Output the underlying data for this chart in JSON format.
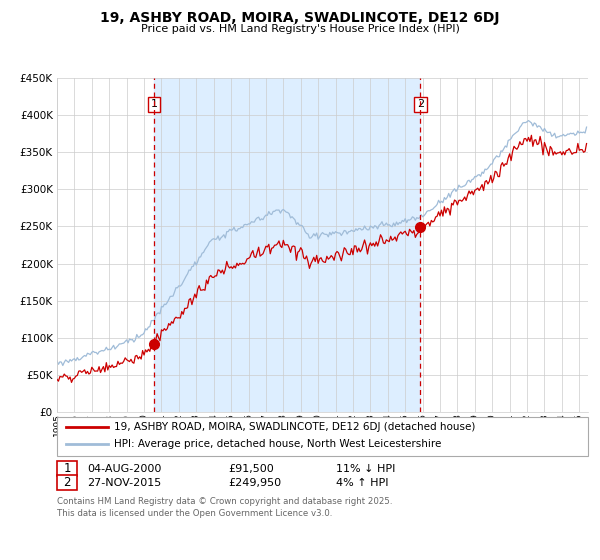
{
  "title": "19, ASHBY ROAD, MOIRA, SWADLINCOTE, DE12 6DJ",
  "subtitle": "Price paid vs. HM Land Registry's House Price Index (HPI)",
  "legend_line1": "19, ASHBY ROAD, MOIRA, SWADLINCOTE, DE12 6DJ (detached house)",
  "legend_line2": "HPI: Average price, detached house, North West Leicestershire",
  "transaction1_date": "04-AUG-2000",
  "transaction1_price": 91500,
  "transaction1_year": 2000.583,
  "transaction2_date": "27-NOV-2015",
  "transaction2_price": 249950,
  "transaction2_year": 2015.875,
  "table_row1": [
    "1",
    "04-AUG-2000",
    "£91,500",
    "11% ↓ HPI"
  ],
  "table_row2": [
    "2",
    "27-NOV-2015",
    "£249,950",
    "4% ↑ HPI"
  ],
  "footer": "Contains HM Land Registry data © Crown copyright and database right 2025.\nThis data is licensed under the Open Government Licence v3.0.",
  "hpi_color": "#a0bcd8",
  "price_color": "#cc0000",
  "shade_color": "#ddeeff",
  "plot_bg": "#ffffff",
  "grid_color": "#cccccc",
  "start_year": 1995.0,
  "end_year": 2025.5,
  "ylim_min": 0,
  "ylim_max": 450000,
  "yticks": [
    0,
    50000,
    100000,
    150000,
    200000,
    250000,
    300000,
    350000,
    400000,
    450000
  ],
  "marker_size": 7
}
